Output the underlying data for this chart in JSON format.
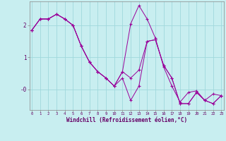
{
  "title": "",
  "xlabel": "Windchill (Refroidissement éolien,°C)",
  "bg_color": "#c8eef0",
  "grid_color": "#a0d8dc",
  "line_color": "#990099",
  "marker_color": "#990099",
  "x_min": 0,
  "x_max": 23,
  "y_min": -0.65,
  "y_max": 2.75,
  "ytick_positions": [
    0.0,
    1.0,
    2.0
  ],
  "ytick_labels": [
    "-0",
    "1",
    "2"
  ],
  "xticks": [
    0,
    1,
    2,
    3,
    4,
    5,
    6,
    7,
    8,
    9,
    10,
    11,
    12,
    13,
    14,
    15,
    16,
    17,
    18,
    19,
    20,
    21,
    22,
    23
  ],
  "series": [
    [
      1.85,
      2.2,
      2.2,
      2.35,
      2.2,
      2.0,
      1.35,
      0.85,
      0.55,
      0.35,
      0.1,
      0.55,
      2.05,
      2.62,
      2.2,
      1.6,
      0.7,
      0.1,
      -0.4,
      -0.1,
      -0.05,
      -0.35,
      -0.15,
      -0.2
    ],
    [
      1.85,
      2.2,
      2.2,
      2.35,
      2.2,
      2.0,
      1.35,
      0.85,
      0.55,
      0.35,
      0.1,
      0.55,
      0.35,
      0.6,
      1.5,
      1.55,
      0.75,
      0.35,
      -0.45,
      -0.45,
      -0.1,
      -0.35,
      -0.45,
      -0.2
    ],
    [
      1.85,
      2.2,
      2.2,
      2.35,
      2.2,
      2.0,
      1.35,
      0.85,
      0.55,
      0.35,
      0.1,
      0.35,
      -0.35,
      0.1,
      1.5,
      1.55,
      0.75,
      0.35,
      -0.45,
      -0.45,
      -0.1,
      -0.35,
      -0.45,
      -0.2
    ]
  ],
  "figsize": [
    3.2,
    2.0
  ],
  "dpi": 100
}
